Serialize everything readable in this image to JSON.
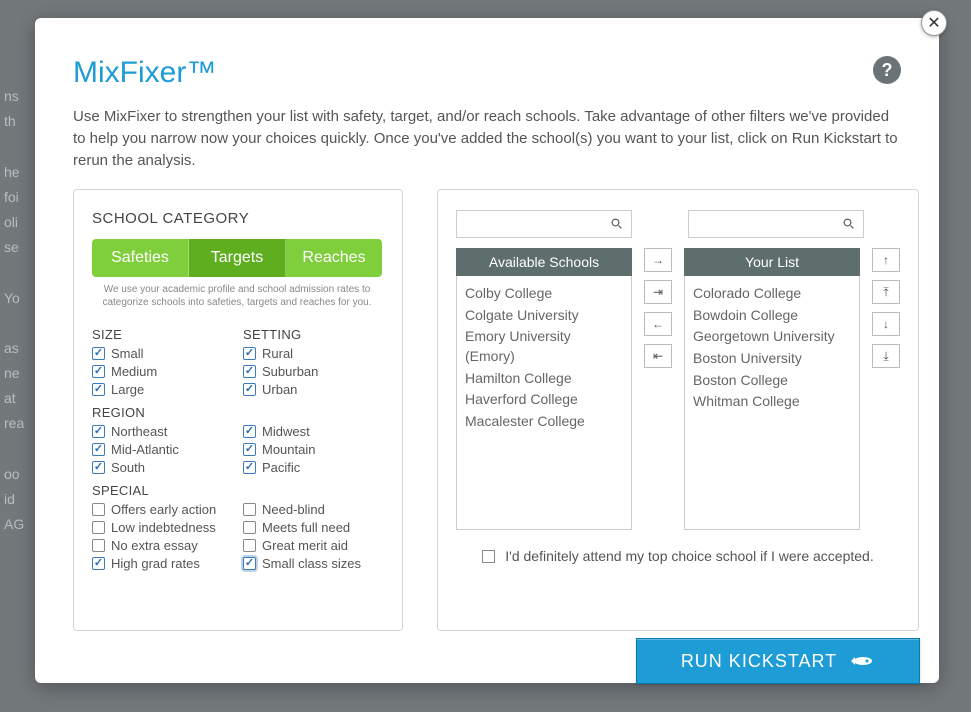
{
  "colors": {
    "accent_blue": "#1d9cd6",
    "tab_green": "#7fcf3c",
    "tab_green_active": "#5fae1f",
    "list_header": "#5d6e6d",
    "text_muted": "#555"
  },
  "modal": {
    "title": "MixFixer™",
    "intro": "Use MixFixer to strengthen your list with safety, target, and/or reach schools. Take advantage of other filters we've provided to help you narrow now your choices quickly. Once you've added the school(s) you want to your list, click on Run Kickstart to rerun the analysis.",
    "category_title": "SCHOOL CATEGORY",
    "category_note": "We use your academic profile and school admission rates to categorize schools into safeties, targets and reaches for you.",
    "tabs": {
      "safeties": "Safeties",
      "targets": "Targets",
      "reaches": "Reaches",
      "active": "targets"
    },
    "filters": {
      "size": {
        "head": "SIZE",
        "small": {
          "label": "Small",
          "checked": true
        },
        "medium": {
          "label": "Medium",
          "checked": true
        },
        "large": {
          "label": "Large",
          "checked": true
        }
      },
      "setting": {
        "head": "SETTING",
        "rural": {
          "label": "Rural",
          "checked": true
        },
        "suburban": {
          "label": "Suburban",
          "checked": true
        },
        "urban": {
          "label": "Urban",
          "checked": true
        }
      },
      "region": {
        "head": "REGION",
        "northeast": {
          "label": "Northeast",
          "checked": true
        },
        "midatlantic": {
          "label": "Mid-Atlantic",
          "checked": true
        },
        "south": {
          "label": "South",
          "checked": true
        },
        "midwest": {
          "label": "Midwest",
          "checked": true
        },
        "mountain": {
          "label": "Mountain",
          "checked": true
        },
        "pacific": {
          "label": "Pacific",
          "checked": true
        }
      },
      "special": {
        "head": "SPECIAL",
        "early": {
          "label": "Offers early action",
          "checked": false
        },
        "lowdebt": {
          "label": "Low indebtedness",
          "checked": false
        },
        "noessay": {
          "label": "No extra essay",
          "checked": false
        },
        "grad": {
          "label": "High grad rates",
          "checked": true
        },
        "needblind": {
          "label": "Need-blind",
          "checked": false
        },
        "fullneed": {
          "label": "Meets full need",
          "checked": false
        },
        "merit": {
          "label": "Great merit aid",
          "checked": false
        },
        "smallclass": {
          "label": "Small class sizes",
          "checked": true
        }
      }
    },
    "lists": {
      "available_head": "Available Schools",
      "your_head": "Your List",
      "available": [
        "Colby College",
        "Colgate University",
        "Emory University (Emory)",
        "Hamilton College",
        "Haverford College",
        "Macalester College"
      ],
      "your": [
        "Colorado College",
        "Bowdoin College",
        "Georgetown University",
        "Boston University",
        "Boston College",
        "Whitman College"
      ]
    },
    "attend_label": "I'd definitely attend my top choice school if I were accepted.",
    "run_label": "RUN KICKSTART"
  }
}
